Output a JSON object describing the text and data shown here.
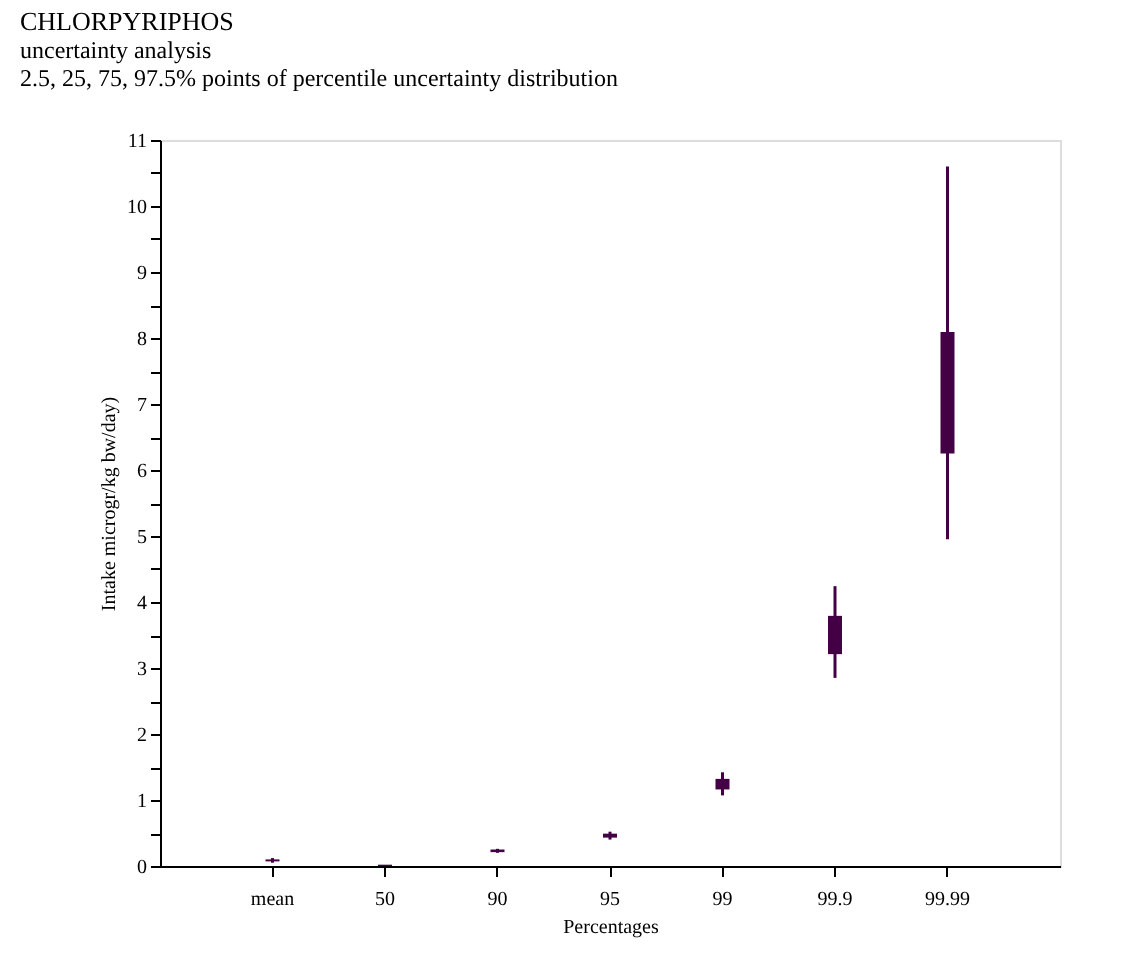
{
  "chart_data": {
    "type": "bar",
    "title": "CHLORPYRIPHOS",
    "subtitle": [
      "uncertainty analysis",
      "2.5, 25, 75, 97.5% points of percentile uncertainty distribution"
    ],
    "xlabel": "Percentages",
    "ylabel": "Intake microgr/kg bw/day)",
    "categories": [
      "mean",
      "50",
      "90",
      "95",
      "99",
      "99.9",
      "99.99"
    ],
    "base": [
      0.07,
      0.0,
      0.21,
      0.43,
      1.16,
      3.21,
      6.25
    ],
    "values": [
      0.03,
      0.02,
      0.04,
      0.06,
      0.16,
      0.58,
      1.84
    ],
    "errors": [
      [
        0.05,
        0.12
      ],
      null,
      [
        0.2,
        0.26
      ],
      [
        0.4,
        0.52
      ],
      [
        1.07,
        1.42
      ],
      [
        2.85,
        4.24
      ],
      [
        4.95,
        10.6
      ]
    ],
    "color": "#440044",
    "ylim": [
      0,
      11
    ],
    "yticks": [
      0,
      {
        "value": 0.5,
        "label": null
      },
      1,
      {
        "value": 1.5,
        "label": null
      },
      2,
      {
        "value": 2.5,
        "label": null
      },
      3,
      {
        "value": 3.5,
        "label": null
      },
      4,
      {
        "value": 4.5,
        "label": null
      },
      5,
      {
        "value": 5.5,
        "label": null
      },
      6,
      {
        "value": 6.5,
        "label": null
      },
      7,
      {
        "value": 7.5,
        "label": null
      },
      8,
      {
        "value": 8.5,
        "label": null
      },
      9,
      {
        "value": 9.5,
        "label": null
      },
      10,
      {
        "value": 10.5,
        "label": null
      },
      11
    ],
    "grid": false
  }
}
